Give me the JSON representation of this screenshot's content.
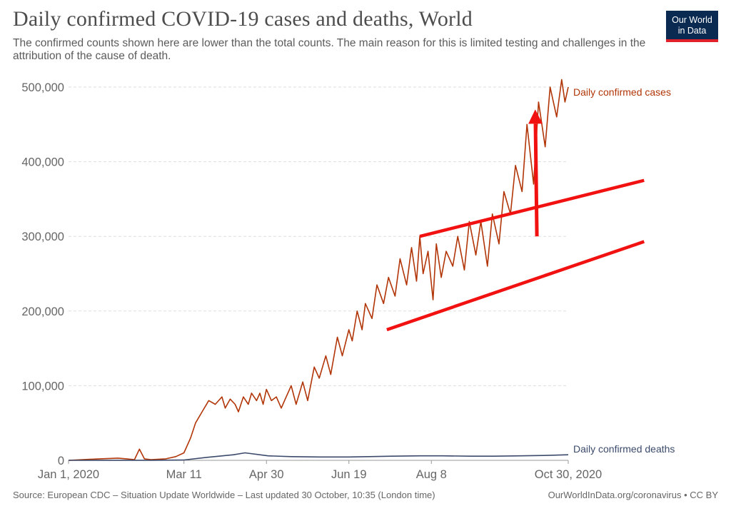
{
  "header": {
    "title": "Daily confirmed COVID-19 cases and deaths, World",
    "subtitle": "The confirmed counts shown here are lower than the total counts. The main reason for this is limited testing and challenges in the attribution of the cause of death."
  },
  "logo": {
    "line1": "Our World",
    "line2": "in Data"
  },
  "footer": {
    "source": "Source: European CDC – Situation Update Worldwide – Last updated 30 October, 10:35 (London time)",
    "credit": "OurWorldInData.org/coronavirus • CC BY"
  },
  "colors": {
    "cases": "#b13507",
    "deaths": "#3b4a6b",
    "annotation": "#f21111"
  },
  "chart_data": {
    "type": "line",
    "title": "Daily confirmed COVID-19 cases and deaths, World",
    "x_range": [
      "2020-01-01",
      "2020-10-30"
    ],
    "ylim": [
      0,
      500000
    ],
    "y_ticks": [
      {
        "value": 0,
        "label": "0"
      },
      {
        "value": 100000,
        "label": "100,000"
      },
      {
        "value": 200000,
        "label": "200,000"
      },
      {
        "value": 300000,
        "label": "300,000"
      },
      {
        "value": 400000,
        "label": "400,000"
      },
      {
        "value": 500000,
        "label": "500,000"
      }
    ],
    "x_ticks": [
      {
        "date": "2020-01-01",
        "label": "Jan 1, 2020"
      },
      {
        "date": "2020-03-11",
        "label": "Mar 11"
      },
      {
        "date": "2020-04-30",
        "label": "Apr 30"
      },
      {
        "date": "2020-06-19",
        "label": "Jun 19"
      },
      {
        "date": "2020-08-08",
        "label": "Aug 8"
      },
      {
        "date": "2020-10-30",
        "label": "Oct 30, 2020"
      }
    ],
    "grid": true,
    "series": [
      {
        "name": "Daily confirmed cases",
        "x": [
          "2020-01-01",
          "2020-01-20",
          "2020-01-31",
          "2020-02-05",
          "2020-02-10",
          "2020-02-13",
          "2020-02-16",
          "2020-02-20",
          "2020-02-29",
          "2020-03-06",
          "2020-03-11",
          "2020-03-15",
          "2020-03-18",
          "2020-03-22",
          "2020-03-26",
          "2020-03-30",
          "2020-04-03",
          "2020-04-05",
          "2020-04-08",
          "2020-04-11",
          "2020-04-13",
          "2020-04-16",
          "2020-04-19",
          "2020-04-21",
          "2020-04-24",
          "2020-04-26",
          "2020-04-28",
          "2020-04-30",
          "2020-05-03",
          "2020-05-06",
          "2020-05-09",
          "2020-05-11",
          "2020-05-15",
          "2020-05-18",
          "2020-05-22",
          "2020-05-25",
          "2020-05-29",
          "2020-06-01",
          "2020-06-05",
          "2020-06-08",
          "2020-06-12",
          "2020-06-15",
          "2020-06-19",
          "2020-06-21",
          "2020-06-24",
          "2020-06-27",
          "2020-06-29",
          "2020-07-03",
          "2020-07-06",
          "2020-07-10",
          "2020-07-13",
          "2020-07-17",
          "2020-07-20",
          "2020-07-24",
          "2020-07-27",
          "2020-07-30",
          "2020-08-01",
          "2020-08-03",
          "2020-08-06",
          "2020-08-09",
          "2020-08-11",
          "2020-08-14",
          "2020-08-17",
          "2020-08-21",
          "2020-08-24",
          "2020-08-28",
          "2020-08-31",
          "2020-09-04",
          "2020-09-07",
          "2020-09-11",
          "2020-09-14",
          "2020-09-18",
          "2020-09-21",
          "2020-09-25",
          "2020-09-28",
          "2020-10-02",
          "2020-10-05",
          "2020-10-09",
          "2020-10-12",
          "2020-10-16",
          "2020-10-19",
          "2020-10-23",
          "2020-10-26",
          "2020-10-28",
          "2020-10-30"
        ],
        "y": [
          0,
          2000,
          3000,
          2000,
          1000,
          15000,
          2000,
          1000,
          2000,
          5000,
          10000,
          30000,
          50000,
          65000,
          80000,
          75000,
          85000,
          70000,
          82000,
          75000,
          65000,
          85000,
          75000,
          90000,
          80000,
          90000,
          75000,
          95000,
          80000,
          85000,
          70000,
          80000,
          100000,
          75000,
          105000,
          80000,
          125000,
          110000,
          140000,
          115000,
          165000,
          140000,
          175000,
          160000,
          200000,
          175000,
          210000,
          190000,
          235000,
          210000,
          245000,
          220000,
          270000,
          235000,
          285000,
          240000,
          300000,
          250000,
          280000,
          215000,
          290000,
          245000,
          280000,
          260000,
          300000,
          255000,
          320000,
          275000,
          320000,
          260000,
          330000,
          290000,
          360000,
          330000,
          395000,
          360000,
          450000,
          370000,
          480000,
          420000,
          500000,
          460000,
          510000,
          480000,
          500000
        ]
      },
      {
        "name": "Daily confirmed deaths",
        "x": [
          "2020-01-01",
          "2020-02-20",
          "2020-03-11",
          "2020-03-25",
          "2020-04-10",
          "2020-04-17",
          "2020-05-01",
          "2020-05-15",
          "2020-06-01",
          "2020-06-19",
          "2020-07-01",
          "2020-07-15",
          "2020-08-01",
          "2020-08-15",
          "2020-09-01",
          "2020-09-15",
          "2020-10-01",
          "2020-10-15",
          "2020-10-30"
        ],
        "y": [
          0,
          100,
          500,
          4000,
          7500,
          10000,
          6000,
          5000,
          4500,
          4500,
          5000,
          5500,
          6000,
          6000,
          5500,
          5500,
          6000,
          6500,
          7500
        ]
      }
    ],
    "annotations": [
      {
        "type": "arrow",
        "from": {
          "x": "2020-10-11",
          "y": 300000
        },
        "to": {
          "x": "2020-10-10",
          "y": 470000
        }
      },
      {
        "type": "line",
        "from": {
          "x": "2020-08-01",
          "y": 300000
        },
        "to": {
          "x": "2020-12-15",
          "y": 375000
        }
      },
      {
        "type": "line",
        "from": {
          "x": "2020-07-12",
          "y": 175000
        },
        "to": {
          "x": "2020-12-15",
          "y": 293000
        }
      }
    ]
  }
}
